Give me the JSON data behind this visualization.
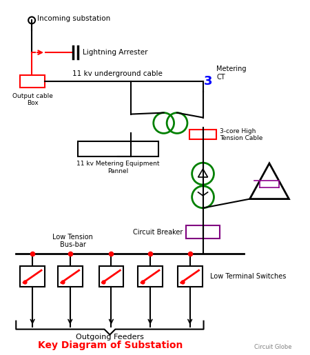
{
  "title": "Key Diagram of Substation",
  "subtitle": "Circuit Globe",
  "bg_color": "#ffffff",
  "line_color": "#000000",
  "red_color": "#ff0000",
  "green_color": "#008000",
  "blue_color": "#0000ff",
  "purple_color": "#800080",
  "labels": {
    "incoming": "Incoming substation",
    "lightning": "Lightning Arrester",
    "underground": "11 kv underground cable",
    "output_box": "Output cable\nBox",
    "metering_ct": "Metering\nCT",
    "high_tension": "3-core High\nTension Cable",
    "metering_panel": "11 kv Metering Equipment\nPannel",
    "low_tension": "Low Tension\nBus-bar",
    "circuit_breaker": "Circuit Breaker",
    "low_terminal": "Low Terminal Switches",
    "outgoing": "Outgoing Feeders"
  }
}
